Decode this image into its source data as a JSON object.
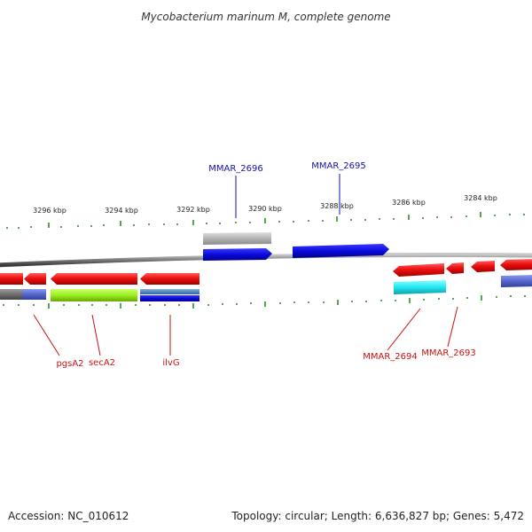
{
  "title": "Mycobacterium marinum M, complete genome",
  "footer": {
    "accession": "Accession: NC_010612",
    "summary": "Topology: circular; Length: 6,636,827 bp; Genes: 5,472"
  },
  "scale": {
    "unit": "kbp",
    "tick_labels": [
      "3296 kbp",
      "3294 kbp",
      "3292 kbp",
      "3290 kbp",
      "3288 kbp",
      "3286 kbp",
      "3284 kbp"
    ]
  },
  "gene_labels": {
    "forward": [
      "MMAR_2696",
      "MMAR_2695"
    ],
    "reverse": [
      "pgsA2",
      "secA2",
      "ilvG",
      "MMAR_2694",
      "MMAR_2693"
    ]
  },
  "colors": {
    "backbone": "#7a7a7a",
    "tick": "#1a8a1a",
    "forward_label": "#1111aa",
    "reverse_label": "#cc1111",
    "gene_red": "#ee1111",
    "gene_blue": "#0b0bdd",
    "gene_gray": "#b4b4b4",
    "gene_green": "#99ee22",
    "gene_cyan": "#22e6ee",
    "gene_slate": "#5566cc",
    "gene_steel": "#4a7fb0",
    "gene_dark": "#666666"
  }
}
